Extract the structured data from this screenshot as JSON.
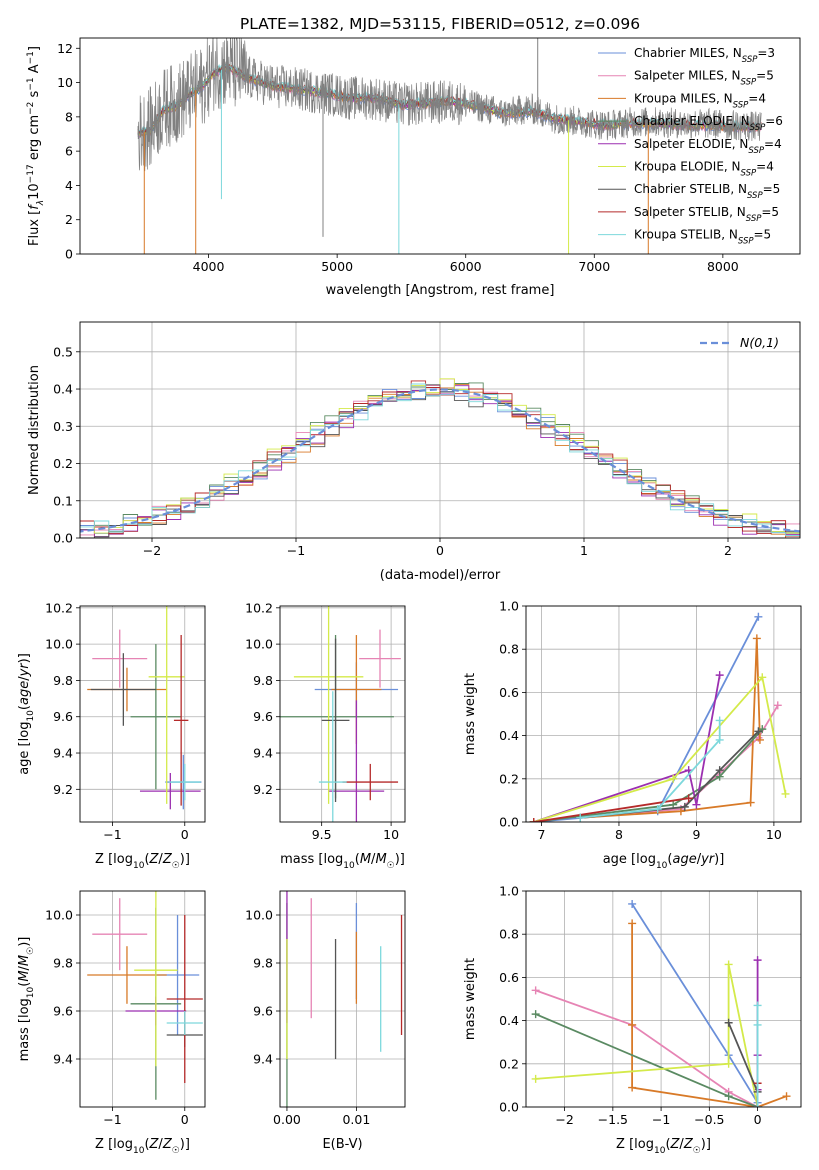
{
  "figure_title": "PLATE=1382, MJD=53115, FIBERID=0512, z=0.096",
  "colors": [
    "#6a8fd9",
    "#e684b4",
    "#d87a28",
    "#5a8a62",
    "#9b2fb0",
    "#d4ea4a",
    "#555555",
    "#b52a2a",
    "#7dd8dc"
  ],
  "chart_data": [
    {
      "id": "spectrum",
      "type": "line",
      "title": "PLATE=1382, MJD=53115, FIBERID=0512, z=0.096",
      "xlabel": "wavelength [Angstrom, rest frame]",
      "ylabel": "Flux [f_λ10^-17 erg cm^-2 s^-1 A^-1]",
      "xlim": [
        3000,
        8600
      ],
      "ylim": [
        0,
        12.6
      ],
      "xticks": [
        4000,
        5000,
        6000,
        7000,
        8000
      ],
      "yticks": [
        0,
        2,
        4,
        6,
        8,
        10,
        12
      ],
      "grid": false,
      "legend_position": "top-right",
      "data_series": {
        "name": "data",
        "x": [
          3450,
          3550,
          3650,
          3750,
          3850,
          3950,
          4050,
          4150,
          4300,
          4500,
          4700,
          4900,
          5100,
          5300,
          5500,
          5700,
          5900,
          6100,
          6300,
          6500,
          6700,
          6900,
          7100,
          7300,
          7500,
          7700,
          7900,
          8100,
          8300
        ],
        "y": [
          7.0,
          7.4,
          8.5,
          8.8,
          9.3,
          9.8,
          10.8,
          10.9,
          10.3,
          9.8,
          9.6,
          9.4,
          9.1,
          9.1,
          8.7,
          8.8,
          8.9,
          8.6,
          8.2,
          8.5,
          7.9,
          7.7,
          7.5,
          7.7,
          7.7,
          7.6,
          7.6,
          7.5,
          7.4
        ]
      },
      "model_continuum": {
        "x": [
          3450,
          3550,
          3650,
          3750,
          3850,
          3950,
          4050,
          4150,
          4300,
          4500,
          4700,
          4900,
          5100,
          5300,
          5500,
          5700,
          5900,
          6100,
          6300,
          6500,
          6700,
          6900,
          7100,
          7300,
          7500,
          7700,
          7900,
          8100,
          8300
        ],
        "y": [
          7.0,
          7.2,
          8.4,
          8.6,
          9.3,
          9.8,
          10.6,
          10.9,
          10.3,
          9.8,
          9.6,
          9.4,
          9.1,
          9.1,
          8.7,
          8.8,
          8.9,
          8.6,
          8.2,
          8.3,
          7.9,
          7.7,
          7.5,
          7.6,
          7.6,
          7.5,
          7.5,
          7.4,
          7.4
        ]
      },
      "series": [
        {
          "name": "Chabrier MILES, N_SSP=3"
        },
        {
          "name": "Salpeter MILES, N_SSP=5"
        },
        {
          "name": "Kroupa MILES, N_SSP=4"
        },
        {
          "name": "Chabrier ELODIE, N_SSP=6"
        },
        {
          "name": "Salpeter ELODIE, N_SSP=4"
        },
        {
          "name": "Kroupa ELODIE, N_SSP=4"
        },
        {
          "name": "Chabrier STELIB, N_SSP=5"
        },
        {
          "name": "Salpeter STELIB, N_SSP=5"
        },
        {
          "name": "Kroupa STELIB, N_SSP=5"
        }
      ],
      "legend_labels": [
        {
          "pre": "Chabrier MILES, N",
          "sub": "SSP",
          "post": "=3"
        },
        {
          "pre": "Salpeter MILES, N",
          "sub": "SSP",
          "post": "=5"
        },
        {
          "pre": "Kroupa MILES, N",
          "sub": "SSP",
          "post": "=4"
        },
        {
          "pre": "Chabrier ELODIE, N",
          "sub": "SSP",
          "post": "=6"
        },
        {
          "pre": "Salpeter ELODIE, N",
          "sub": "SSP",
          "post": "=4"
        },
        {
          "pre": "Kroupa ELODIE, N",
          "sub": "SSP",
          "post": "=4"
        },
        {
          "pre": "Chabrier STELIB, N",
          "sub": "SSP",
          "post": "=5"
        },
        {
          "pre": "Salpeter STELIB, N",
          "sub": "SSP",
          "post": "=5"
        },
        {
          "pre": "Kroupa STELIB, N",
          "sub": "SSP",
          "post": "=5"
        }
      ]
    },
    {
      "id": "residuals",
      "type": "histogram",
      "xlabel": "(data-model)/error",
      "ylabel": "Normed distribution",
      "xlim": [
        -2.5,
        2.5
      ],
      "ylim": [
        0,
        0.58
      ],
      "xticks": [
        -2,
        -1,
        0,
        1,
        2
      ],
      "yticks": [
        0.0,
        0.1,
        0.2,
        0.3,
        0.4,
        0.5
      ],
      "grid": true,
      "legend_position": "top-right",
      "legend_label": "N(0,1)",
      "bin_width": 0.1,
      "reference_curve": "normal pdf, mean 0, sigma 1",
      "series_offsets": [
        0.0,
        0.01,
        -0.01,
        0.015,
        -0.015,
        0.02,
        -0.02,
        0.005,
        -0.005
      ]
    },
    {
      "id": "age_vs_Z",
      "type": "errorbar",
      "xlabel": "Z [log10(Z/Z☉)]",
      "ylabel": "age [log10(age/yr)]",
      "xlim": [
        -1.45,
        0.28
      ],
      "ylim": [
        9.02,
        10.21
      ],
      "xticks": [
        -1,
        0
      ],
      "yticks": [
        9.2,
        9.4,
        9.6,
        9.8,
        10.0,
        10.2
      ],
      "grid": true,
      "points": [
        {
          "series": 0,
          "x": -0.02,
          "y": 9.24,
          "xerr": 0.25,
          "yerr": 0.15
        },
        {
          "series": 1,
          "x": -0.9,
          "y": 9.92,
          "xerr": 0.38,
          "yerr": 0.16
        },
        {
          "series": 2,
          "x": -0.8,
          "y": 9.75,
          "xerr": 0.55,
          "yerr": 0.12
        },
        {
          "series": 3,
          "x": -0.4,
          "y": 9.6,
          "xerr": 0.35,
          "yerr": 0.4
        },
        {
          "series": 4,
          "x": -0.2,
          "y": 9.19,
          "xerr": 0.42,
          "yerr": 0.1
        },
        {
          "series": 5,
          "x": -0.25,
          "y": 9.82,
          "xerr": 0.25,
          "yerr": 0.7
        },
        {
          "series": 6,
          "x": -0.85,
          "y": 9.75,
          "xerr": 0.45,
          "yerr": 0.2
        },
        {
          "series": 7,
          "x": -0.05,
          "y": 9.58,
          "xerr": 0.1,
          "yerr": 0.47
        },
        {
          "series": 8,
          "x": 0.0,
          "y": 9.24,
          "xerr": 0.22,
          "yerr": 0.1
        }
      ]
    },
    {
      "id": "age_vs_mass",
      "type": "errorbar",
      "xlabel": "mass [log10(M/M☉)]",
      "ylabel": "",
      "xlim": [
        9.2,
        10.1
      ],
      "ylim": [
        9.02,
        10.21
      ],
      "xticks": [
        9.5,
        10.0
      ],
      "yticks": [
        9.2,
        9.4,
        9.6,
        9.8,
        10.0,
        10.2
      ],
      "grid": true,
      "points": [
        {
          "series": 0,
          "x": 9.75,
          "y": 9.75,
          "xerr": 0.3,
          "yerr": 0.15
        },
        {
          "series": 1,
          "x": 9.92,
          "y": 9.92,
          "xerr": 0.15,
          "yerr": 0.16
        },
        {
          "series": 2,
          "x": 9.75,
          "y": 9.75,
          "xerr": 0.18,
          "yerr": 0.3
        },
        {
          "series": 3,
          "x": 9.6,
          "y": 9.6,
          "xerr": 0.42,
          "yerr": 0.45
        },
        {
          "series": 4,
          "x": 9.75,
          "y": 9.19,
          "xerr": 0.2,
          "yerr": 0.5
        },
        {
          "series": 5,
          "x": 9.55,
          "y": 9.82,
          "xerr": 0.25,
          "yerr": 0.7
        },
        {
          "series": 6,
          "x": 9.6,
          "y": 9.58,
          "xerr": 0.1,
          "yerr": 0.45
        },
        {
          "series": 7,
          "x": 9.85,
          "y": 9.24,
          "xerr": 0.2,
          "yerr": 0.1
        },
        {
          "series": 8,
          "x": 9.58,
          "y": 9.24,
          "xerr": 0.1,
          "yerr": 0.5
        }
      ]
    },
    {
      "id": "mass_weight_vs_age",
      "type": "line",
      "xlabel": "age [log10(age/yr)]",
      "ylabel": "mass weight",
      "xlim": [
        6.8,
        10.35
      ],
      "ylim": [
        0,
        1.0
      ],
      "xticks": [
        7,
        8,
        9,
        10
      ],
      "yticks": [
        0.0,
        0.2,
        0.4,
        0.6,
        0.8,
        1.0
      ],
      "grid": true,
      "series": [
        {
          "index": 0,
          "x": [
            6.9,
            8.5,
            9.8
          ],
          "y": [
            0.0,
            0.05,
            0.95
          ]
        },
        {
          "index": 1,
          "x": [
            7.5,
            8.8,
            9.8,
            10.05
          ],
          "y": [
            0.02,
            0.06,
            0.39,
            0.54
          ]
        },
        {
          "index": 2,
          "x": [
            7.5,
            8.8,
            9.7,
            9.78,
            9.82
          ],
          "y": [
            0.02,
            0.05,
            0.09,
            0.85,
            0.38
          ]
        },
        {
          "index": 3,
          "x": [
            6.9,
            8.7,
            9.3,
            9.85
          ],
          "y": [
            0.0,
            0.08,
            0.21,
            0.43
          ]
        },
        {
          "index": 4,
          "x": [
            6.9,
            8.9,
            9.0,
            9.3
          ],
          "y": [
            0.0,
            0.24,
            0.08,
            0.68
          ]
        },
        {
          "index": 5,
          "x": [
            6.9,
            8.7,
            9.85,
            10.15
          ],
          "y": [
            0.0,
            0.2,
            0.67,
            0.13
          ]
        },
        {
          "index": 6,
          "x": [
            7.5,
            8.85,
            9.3,
            9.8
          ],
          "y": [
            0.02,
            0.07,
            0.24,
            0.42
          ]
        },
        {
          "index": 7,
          "x": [
            6.9,
            8.9
          ],
          "y": [
            0.0,
            0.11
          ]
        },
        {
          "index": 8,
          "x": [
            7.5,
            8.5,
            9.3,
            9.3
          ],
          "y": [
            0.02,
            0.06,
            0.38,
            0.47
          ]
        }
      ]
    },
    {
      "id": "mass_vs_Z",
      "type": "errorbar",
      "xlabel": "Z [log10(Z/Z☉)]",
      "ylabel": "mass [log10(M/M☉)]",
      "xlim": [
        -1.45,
        0.28
      ],
      "ylim": [
        9.2,
        10.1
      ],
      "xticks": [
        -1,
        0
      ],
      "yticks": [
        9.4,
        9.6,
        9.8,
        10.0
      ],
      "grid": true,
      "points": [
        {
          "series": 0,
          "x": -0.1,
          "y": 9.75,
          "xerr": 0.3,
          "yerr": 0.25
        },
        {
          "series": 1,
          "x": -0.9,
          "y": 9.92,
          "xerr": 0.38,
          "yerr": 0.15
        },
        {
          "series": 2,
          "x": -0.8,
          "y": 9.75,
          "xerr": 0.55,
          "yerr": 0.12
        },
        {
          "series": 3,
          "x": -0.4,
          "y": 9.63,
          "xerr": 0.35,
          "yerr": 0.4
        },
        {
          "series": 4,
          "x": -0.4,
          "y": 9.6,
          "xerr": 0.42,
          "yerr": 0.06
        },
        {
          "series": 5,
          "x": -0.4,
          "y": 9.77,
          "xerr": 0.3,
          "yerr": 0.4
        },
        {
          "series": 6,
          "x": 0.0,
          "y": 9.5,
          "xerr": 0.25,
          "yerr": 0.05
        },
        {
          "series": 7,
          "x": 0.0,
          "y": 9.65,
          "xerr": 0.25,
          "yerr": 0.35
        },
        {
          "series": 8,
          "x": 0.0,
          "y": 9.55,
          "xerr": 0.25,
          "yerr": 0.05
        }
      ]
    },
    {
      "id": "mass_vs_ebv",
      "type": "errorbar",
      "xlabel": "E(B-V)",
      "ylabel": "",
      "xlim": [
        -0.001,
        0.017
      ],
      "ylim": [
        9.2,
        10.1
      ],
      "xticks": [
        0.0,
        0.01
      ],
      "xtick_labels": [
        "0.00",
        "0.01"
      ],
      "yticks": [
        9.4,
        9.6,
        9.8,
        10.0
      ],
      "grid": true,
      "points": [
        {
          "series": 0,
          "x": 0.01,
          "y": 9.85,
          "xerr": 0,
          "yerr": 0.2
        },
        {
          "series": 1,
          "x": 0.0035,
          "y": 9.82,
          "xerr": 0,
          "yerr": 0.25
        },
        {
          "series": 2,
          "x": 0.01,
          "y": 9.78,
          "xerr": 0,
          "yerr": 0.15
        },
        {
          "series": 3,
          "x": 0.0,
          "y": 9.6,
          "xerr": 0,
          "yerr": 0.45
        },
        {
          "series": 4,
          "x": 0.0,
          "y": 9.85,
          "xerr": 0,
          "yerr": 0.3
        },
        {
          "series": 5,
          "x": 0.0,
          "y": 9.65,
          "xerr": 0,
          "yerr": 0.25
        },
        {
          "series": 6,
          "x": 0.007,
          "y": 9.65,
          "xerr": 0,
          "yerr": 0.25
        },
        {
          "series": 7,
          "x": 0.0165,
          "y": 9.75,
          "xerr": 0,
          "yerr": 0.25
        },
        {
          "series": 8,
          "x": 0.0135,
          "y": 9.65,
          "xerr": 0,
          "yerr": 0.22
        }
      ]
    },
    {
      "id": "mass_weight_vs_Z",
      "type": "line",
      "xlabel": "Z [log10(Z/Z☉)]",
      "ylabel": "mass weight",
      "xlim": [
        -2.4,
        0.45
      ],
      "ylim": [
        0,
        1.0
      ],
      "xticks": [
        -2.0,
        -1.5,
        -1.0,
        -0.5,
        0.0
      ],
      "yticks": [
        0.0,
        0.2,
        0.4,
        0.6,
        0.8,
        1.0
      ],
      "grid": true,
      "series": [
        {
          "index": 0,
          "x": [
            -1.3,
            -0.3,
            0.0
          ],
          "y": [
            0.94,
            0.24,
            0.02
          ]
        },
        {
          "index": 1,
          "x": [
            -2.3,
            -1.3,
            -0.3,
            0.0
          ],
          "y": [
            0.54,
            0.38,
            0.07,
            0.0
          ]
        },
        {
          "index": 2,
          "x": [
            -1.3,
            -1.3,
            -1.3,
            0.0,
            0.3
          ],
          "y": [
            0.85,
            0.38,
            0.09,
            0.0,
            0.05
          ]
        },
        {
          "index": 3,
          "x": [
            -2.3,
            -0.3,
            0.0
          ],
          "y": [
            0.43,
            0.05,
            0.0
          ]
        },
        {
          "index": 4,
          "x": [
            0.0,
            0.0,
            0.0,
            0.0
          ],
          "y": [
            0.68,
            0.24,
            0.08,
            0.0
          ]
        },
        {
          "index": 5,
          "x": [
            -2.3,
            -0.3,
            -0.3,
            0.0
          ],
          "y": [
            0.13,
            0.2,
            0.66,
            0.0
          ]
        },
        {
          "index": 6,
          "x": [
            -0.3,
            0.0,
            0.0
          ],
          "y": [
            0.39,
            0.07,
            0.0
          ]
        },
        {
          "index": 7,
          "x": [
            0.0,
            0.0
          ],
          "y": [
            0.11,
            0.0
          ]
        },
        {
          "index": 8,
          "x": [
            0.0,
            0.0,
            0.0
          ],
          "y": [
            0.47,
            0.38,
            0.0
          ]
        }
      ]
    }
  ]
}
